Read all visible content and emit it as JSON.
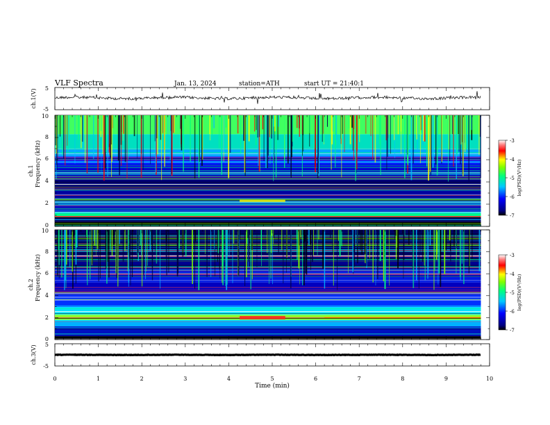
{
  "header": {
    "title": "VLF Spectra",
    "date": "Jan. 13, 2024",
    "station": "station=ATH",
    "start_ut": "start UT = 21:40:1"
  },
  "chart_data": [
    {
      "type": "line",
      "panel": "ch1-waveform",
      "ylabel": "ch.1(V)",
      "yticks": [
        "5",
        "-5"
      ],
      "ylim": [
        -5,
        5
      ],
      "xlim": [
        0,
        10
      ]
    },
    {
      "type": "heatmap",
      "panel": "ch1-spectrogram",
      "ylabel_line1": "ch.1",
      "ylabel_line2": "Frequency (kHz)",
      "yticks": [
        "0",
        "2",
        "4",
        "6",
        "8",
        "10"
      ],
      "ylim": [
        0,
        10
      ],
      "xlim": [
        0,
        10
      ],
      "colorbar": {
        "label": "log(PSD)(V²/Hz)",
        "ticks": [
          "-3",
          "-4",
          "-5",
          "-6",
          "-7"
        ],
        "range": [
          -7,
          -3
        ]
      }
    },
    {
      "type": "heatmap",
      "panel": "ch2-spectrogram",
      "ylabel_line1": "ch.2",
      "ylabel_line2": "Frequency (kHz)",
      "yticks": [
        "0",
        "2",
        "4",
        "6",
        "8",
        "10"
      ],
      "ylim": [
        0,
        10
      ],
      "xlim": [
        0,
        10
      ],
      "colorbar": {
        "label": "log(PSD)(V²/Hz)",
        "ticks": [
          "-3",
          "-4",
          "-5",
          "-6",
          "-7"
        ],
        "range": [
          -7,
          -3
        ]
      }
    },
    {
      "type": "line",
      "panel": "ch3-waveform",
      "ylabel": "ch.3(V)",
      "yticks": [
        "5",
        "-5"
      ],
      "ylim": [
        -5,
        5
      ],
      "xlim": [
        0,
        10
      ]
    }
  ],
  "xaxis": {
    "label": "Time (min)",
    "ticks": [
      "0",
      "1",
      "2",
      "3",
      "4",
      "5",
      "6",
      "7",
      "8",
      "9",
      "10"
    ],
    "range": [
      0,
      10
    ]
  }
}
